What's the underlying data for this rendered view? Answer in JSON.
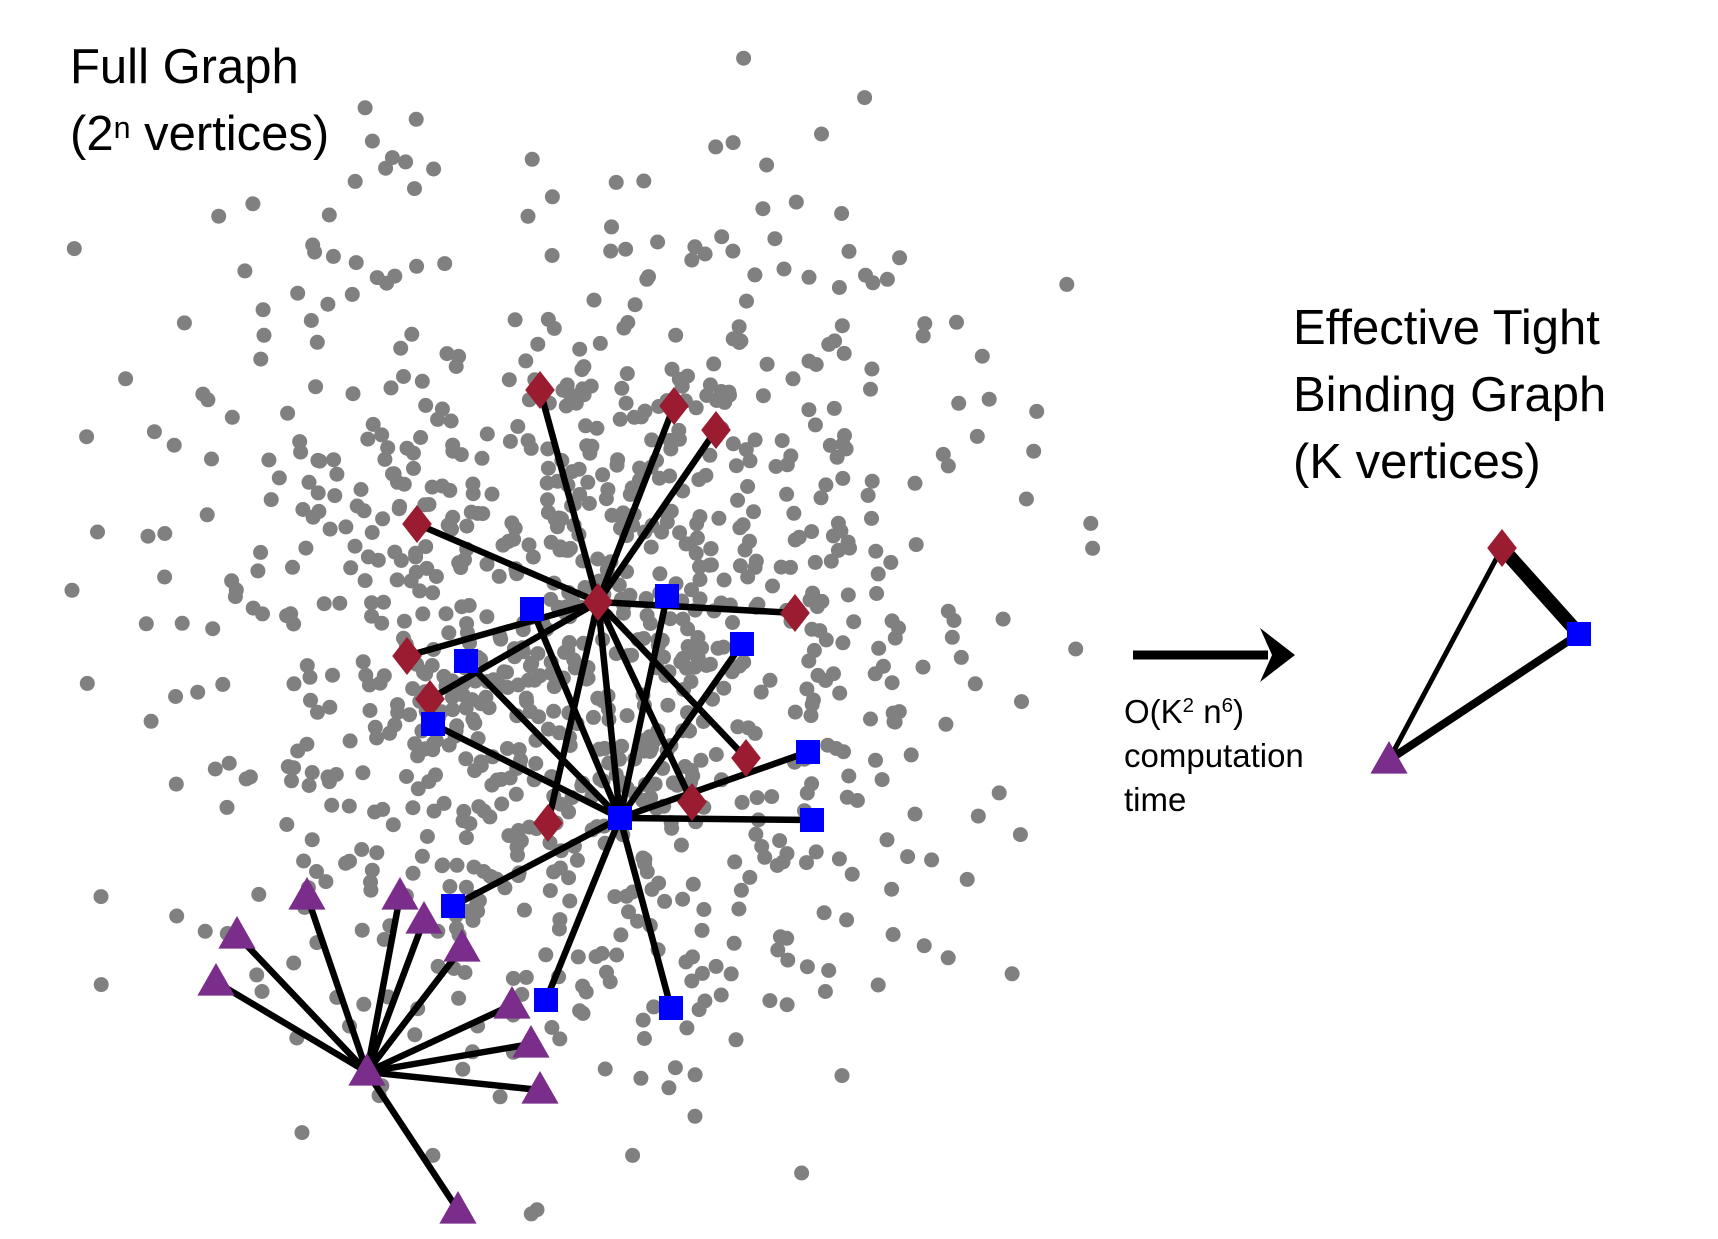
{
  "full_graph": {
    "title": "Full Graph",
    "vertices_prefix": "(2",
    "vertices_exp": "n",
    "vertices_suffix": " vertices)"
  },
  "effective_graph": {
    "title_line1": "Effective Tight",
    "title_line2": "Binding Graph",
    "title_line3": "(K vertices)"
  },
  "transform": {
    "cost_prefix": "O(K",
    "cost_exp1": "2",
    "cost_mid": " n",
    "cost_exp2": "6",
    "cost_suffix": ")",
    "line2": "computation",
    "line3": "time"
  },
  "colors": {
    "background_node": "#808080",
    "diamond": "#9b1b30",
    "square": "#0000ff",
    "triangle": "#7b2d8b",
    "edge": "#000000"
  }
}
